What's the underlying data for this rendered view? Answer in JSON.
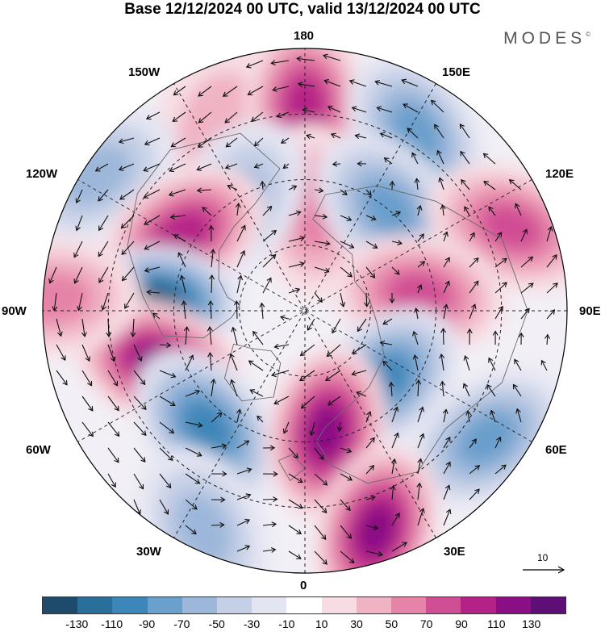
{
  "title": "Base 12/12/2024 00 UTC, valid 13/12/2024 00 UTC",
  "brand": "MODES",
  "brand_mark": "©",
  "longitude_labels": {
    "top": "180",
    "top_left": "150W",
    "top_right": "150E",
    "upper_left": "120W",
    "upper_right": "120E",
    "left": "90W",
    "right": "90E",
    "lower_left": "60W",
    "lower_right": "60E",
    "bottom_left": "30W",
    "bottom_right": "30E",
    "bottom": "0"
  },
  "reference_vector": {
    "label": "10",
    "arrow_icon": "right-arrow-icon"
  },
  "colorbar": {
    "colors": [
      "#1e4b6b",
      "#2a6e9a",
      "#3d86b8",
      "#6b9fcc",
      "#9db7da",
      "#c5cfe6",
      "#e4e5f2",
      "#ffffff",
      "#f7dde3",
      "#f0b3c4",
      "#e683a8",
      "#d04e94",
      "#b52287",
      "#8a0f85",
      "#5d0f76"
    ],
    "ticks": [
      "-130",
      "-110",
      "-90",
      "-70",
      "-50",
      "-30",
      "-10",
      "10",
      "30",
      "50",
      "70",
      "90",
      "110",
      "130"
    ]
  },
  "anomaly_centers": [
    {
      "lon": -155,
      "dist": 0.8,
      "value": 40
    },
    {
      "lon": 180,
      "dist": 0.78,
      "value": 95
    },
    {
      "lon": 148,
      "dist": 0.8,
      "value": -80
    },
    {
      "lon": 175,
      "dist": 0.38,
      "value": 60
    },
    {
      "lon": -148,
      "dist": 0.49,
      "value": -60
    },
    {
      "lon": -123,
      "dist": 0.95,
      "value": -60
    },
    {
      "lon": -122,
      "dist": 0.55,
      "value": 95
    },
    {
      "lon": 140,
      "dist": 0.5,
      "value": -70
    },
    {
      "lon": 112,
      "dist": 0.85,
      "value": 85
    },
    {
      "lon": 98,
      "dist": 0.44,
      "value": 70
    },
    {
      "lon": -92,
      "dist": 0.58,
      "value": -135
    },
    {
      "lon": -70,
      "dist": 0.59,
      "value": 125
    },
    {
      "lon": -93,
      "dist": 0.96,
      "value": 55
    },
    {
      "lon": 48,
      "dist": 0.4,
      "value": -100
    },
    {
      "lon": 55,
      "dist": 0.85,
      "value": -70
    },
    {
      "lon": -40,
      "dist": 0.58,
      "value": -105
    },
    {
      "lon": 10,
      "dist": 0.47,
      "value": 115
    },
    {
      "lon": 18,
      "dist": 0.88,
      "value": 120
    },
    {
      "lon": -25,
      "dist": 0.92,
      "value": -60
    }
  ]
}
